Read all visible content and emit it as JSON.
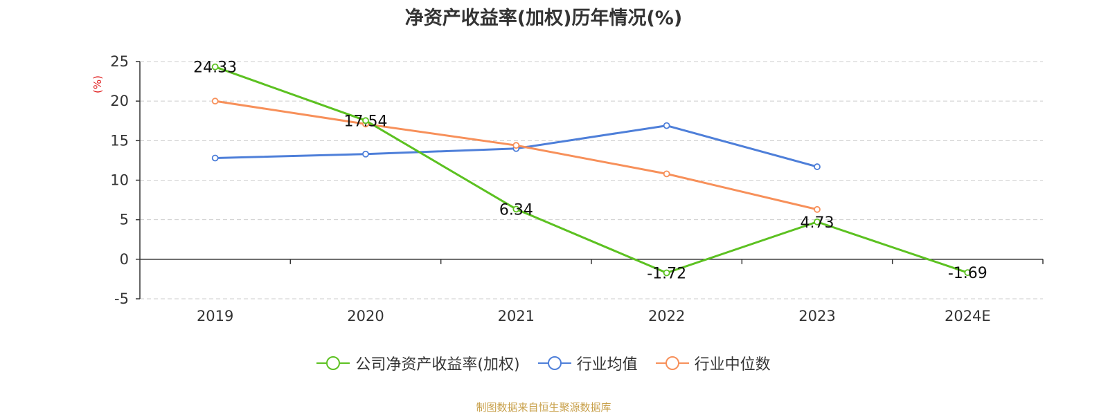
{
  "chart_data": {
    "type": "line",
    "title": "净资产收益率(加权)历年情况(%)",
    "ylabel": "(%)",
    "xlabel": "",
    "categories": [
      "2019",
      "2020",
      "2021",
      "2022",
      "2023",
      "2024E"
    ],
    "ylim": [
      -5,
      25
    ],
    "yticks": [
      25,
      20,
      15,
      10,
      5,
      0,
      -5
    ],
    "grid": true,
    "legend_position": "bottom-center",
    "series": [
      {
        "name": "公司净资产收益率(加权)",
        "color": "#5cc121",
        "values": [
          24.33,
          17.54,
          6.34,
          -1.72,
          4.73,
          -1.69
        ],
        "labels": [
          "24.33",
          "17.54",
          "6.34",
          "-1.72",
          "4.73",
          "-1.69"
        ]
      },
      {
        "name": "行业均值",
        "color": "#4e7fd9",
        "values": [
          12.8,
          13.3,
          14.0,
          16.9,
          11.7,
          null
        ]
      },
      {
        "name": "行业中位数",
        "color": "#f7905a",
        "values": [
          20.0,
          17.1,
          14.4,
          10.8,
          6.3,
          null
        ]
      }
    ]
  },
  "source": "制图数据来自恒生聚源数据库"
}
